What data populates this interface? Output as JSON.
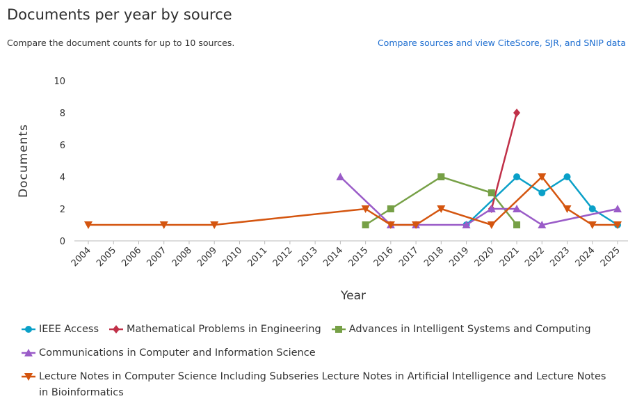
{
  "header": {
    "title": "Documents per year by source",
    "subtitle": "Compare the document counts for up to 10 sources.",
    "link": "Compare sources and view CiteScore, SJR, and SNIP data"
  },
  "chart_data": {
    "type": "line",
    "x_label": "Year",
    "y_label": "Documents",
    "xlim": [
      2004,
      2025
    ],
    "xticks": [
      2004,
      2005,
      2006,
      2007,
      2008,
      2009,
      2010,
      2011,
      2012,
      2013,
      2014,
      2015,
      2016,
      2017,
      2018,
      2019,
      2020,
      2021,
      2022,
      2023,
      2024,
      2025
    ],
    "ylim": [
      0,
      10
    ],
    "yticks": [
      0,
      2,
      4,
      6,
      8,
      10
    ],
    "grid": false,
    "legend": "bottom",
    "series": [
      {
        "name": "IEEE Access",
        "color": "#0aa0c8",
        "marker": "circle",
        "x": [
          2019,
          2021,
          2022,
          2023,
          2024,
          2025
        ],
        "values": [
          1,
          4,
          3,
          4,
          2,
          1
        ]
      },
      {
        "name": "Mathematical Problems in Engineering",
        "color": "#c03048",
        "marker": "diamond",
        "x": [
          2020,
          2021
        ],
        "values": [
          2,
          8
        ]
      },
      {
        "name": "Advances in Intelligent Systems and Computing",
        "color": "#76a046",
        "marker": "square",
        "x": [
          2015,
          2016,
          2018,
          2020,
          2021
        ],
        "values": [
          1,
          2,
          4,
          3,
          1
        ]
      },
      {
        "name": "Communications in Computer and Information Science",
        "color": "#9a5cc8",
        "marker": "triangle-up",
        "x": [
          2014,
          2016,
          2017,
          2019,
          2020,
          2021,
          2022,
          2025
        ],
        "values": [
          4,
          1,
          1,
          1,
          2,
          2,
          1,
          2
        ]
      },
      {
        "name": "Lecture Notes in Computer Science Including Subseries Lecture Notes in Artificial Intelligence and Lecture Notes in Bioinformatics",
        "color": "#d4550f",
        "marker": "triangle-down",
        "x": [
          2004,
          2007,
          2009,
          2015,
          2016,
          2017,
          2018,
          2020,
          2022,
          2023,
          2024,
          2025
        ],
        "values": [
          1,
          1,
          1,
          2,
          1,
          1,
          2,
          1,
          4,
          2,
          1,
          1
        ]
      }
    ]
  }
}
